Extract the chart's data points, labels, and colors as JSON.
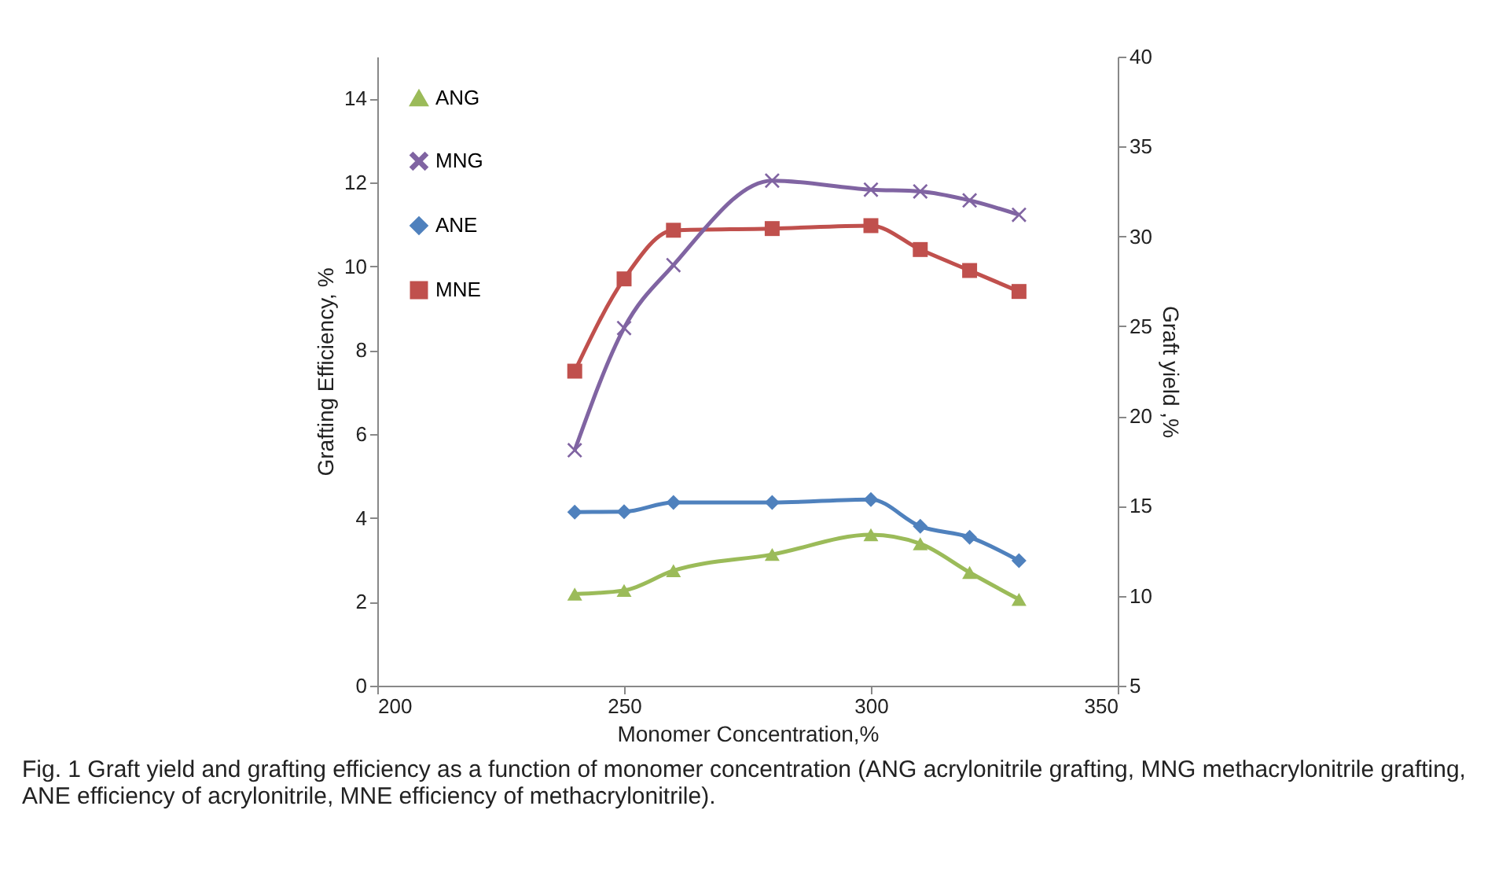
{
  "chart_data": {
    "type": "line",
    "xlabel": "Monomer Concentration,%",
    "ylabel": "Grafting Efficiency, %",
    "y2label": "Graft yield ,%",
    "x": [
      240,
      250,
      260,
      280,
      300,
      310,
      320,
      330
    ],
    "series": [
      {
        "name": "ANG",
        "color": "#9bbb59",
        "axis": "y2",
        "marker": "triangle",
        "values": [
          10.1,
          10.3,
          11.4,
          12.3,
          13.4,
          12.9,
          11.3,
          9.8
        ]
      },
      {
        "name": "MNG",
        "color": "#8064a2",
        "axis": "y2",
        "marker": "cross",
        "values": [
          18.1,
          24.9,
          28.4,
          33.1,
          32.6,
          32.5,
          32.0,
          31.2
        ]
      },
      {
        "name": "ANE",
        "color": "#4f81bd",
        "marker": "diamond",
        "values": [
          4.14,
          4.15,
          4.37,
          4.37,
          4.44,
          3.8,
          3.54,
          2.98
        ]
      },
      {
        "name": "MNE",
        "color": "#c0504d",
        "marker": "square",
        "values": [
          7.5,
          9.7,
          10.86,
          10.9,
          10.97,
          10.4,
          9.9,
          9.4
        ]
      }
    ],
    "xlim": [
      200,
      350
    ],
    "xticks": [
      200,
      250,
      300,
      350
    ],
    "ylim": [
      0,
      15
    ],
    "yticks": [
      0,
      2,
      4,
      6,
      8,
      10,
      12,
      14
    ],
    "y2lim": [
      5,
      40
    ],
    "y2ticks": [
      5,
      10,
      15,
      20,
      25,
      30,
      35,
      40
    ],
    "legend": "top left",
    "grid": false,
    "annotations": [
      "Fig. 1 Graft yield and grafting efficiency as a function of monomer concentration (ANG acrylonitrile grafting, MNG methacrylonitrile grafting, ANE efficiency of acrylonitrile, MNE efficiency of methacrylonitrile)."
    ]
  }
}
